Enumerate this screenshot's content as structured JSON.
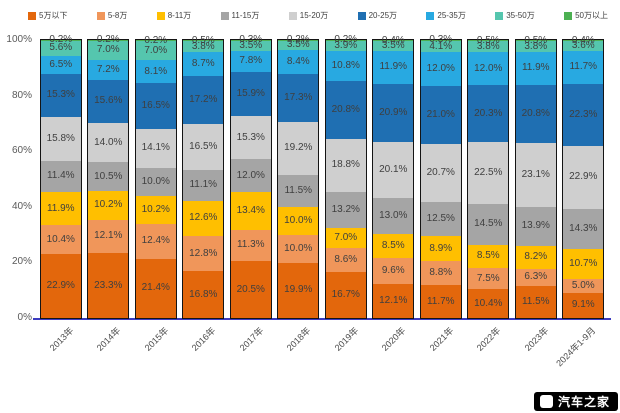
{
  "watermark": {
    "text": "汽车之家",
    "logo_icon": "autohome-logo-icon"
  },
  "chart_data": {
    "type": "bar",
    "stacked": true,
    "percent": true,
    "title": "",
    "xlabel": "",
    "ylabel": "",
    "ylim": [
      0,
      100
    ],
    "yticks": [
      "100%",
      "80%",
      "60%",
      "40%",
      "20%",
      "0%"
    ],
    "legend_position": "top",
    "grid": false,
    "value_suffix": "%",
    "categories": [
      "2013年",
      "2014年",
      "2015年",
      "2016年",
      "2017年",
      "2018年",
      "2019年",
      "2020年",
      "2021年",
      "2022年",
      "2023年",
      "2024年1-9月"
    ],
    "series": [
      {
        "name": "5万以下",
        "color": "#E3670C",
        "values": [
          22.9,
          23.3,
          21.4,
          16.8,
          20.5,
          19.9,
          16.7,
          12.1,
          11.7,
          10.4,
          11.5,
          9.1
        ]
      },
      {
        "name": "5-8万",
        "color": "#F0965A",
        "values": [
          10.4,
          12.1,
          12.4,
          12.8,
          11.3,
          10.0,
          8.6,
          9.6,
          8.8,
          7.5,
          6.3,
          5.0
        ]
      },
      {
        "name": "8-11万",
        "color": "#FFBF00",
        "values": [
          11.9,
          10.2,
          10.2,
          12.6,
          13.4,
          10.0,
          7.0,
          8.5,
          8.9,
          8.5,
          8.2,
          10.7
        ]
      },
      {
        "name": "11-15万",
        "color": "#A5A5A5",
        "values": [
          11.4,
          10.5,
          10.0,
          11.1,
          12.0,
          11.5,
          13.2,
          13.0,
          12.5,
          14.5,
          13.9,
          14.3
        ]
      },
      {
        "name": "15-20万",
        "color": "#CFCFCF",
        "values": [
          15.8,
          14.0,
          14.1,
          16.5,
          15.3,
          19.2,
          18.8,
          20.1,
          20.7,
          22.5,
          23.1,
          22.9
        ]
      },
      {
        "name": "20-25万",
        "color": "#1F6FB2",
        "values": [
          15.3,
          15.6,
          16.5,
          17.2,
          15.9,
          17.3,
          20.8,
          20.9,
          21.0,
          20.3,
          20.8,
          22.3
        ]
      },
      {
        "name": "25-35万",
        "color": "#28A9E1",
        "values": [
          6.5,
          7.2,
          8.1,
          8.7,
          7.8,
          8.4,
          10.8,
          11.9,
          12.0,
          12.0,
          11.9,
          11.7
        ]
      },
      {
        "name": "35-50万",
        "color": "#55C6AE",
        "values": [
          5.6,
          7.0,
          7.0,
          3.8,
          3.5,
          3.5,
          3.9,
          3.5,
          4.1,
          3.8,
          3.8,
          3.6
        ]
      },
      {
        "name": "50万以上",
        "color": "#4CB052",
        "values": [
          0.2,
          0.2,
          0.2,
          0.5,
          0.3,
          0.2,
          0.2,
          0.4,
          0.3,
          0.5,
          0.5,
          0.4
        ]
      }
    ]
  }
}
